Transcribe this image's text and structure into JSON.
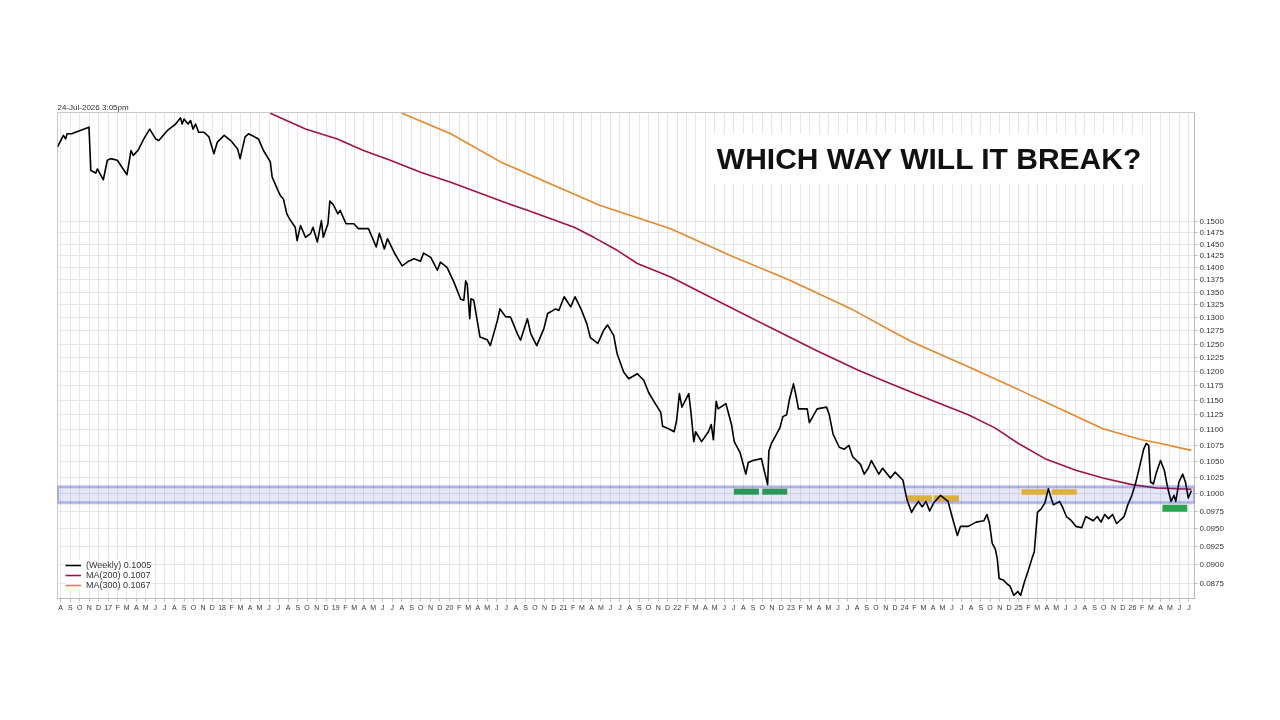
{
  "chart_data": {
    "type": "line",
    "title": "WHICH WAY WILL IT BREAK?",
    "annotations": [
      "24-Jul-2026 3:05pm"
    ],
    "xlim": [
      "2016-07-22",
      "2026-07-19"
    ],
    "ylim": [
      0.0856,
      0.1764
    ],
    "log": true,
    "grid": true,
    "legend": "bottom left",
    "line_style": "solid",
    "xticks": [
      {
        "value": "2016-08",
        "label": "A"
      },
      {
        "value": "2016-09",
        "label": "S"
      },
      {
        "value": "2016-10",
        "label": "O"
      },
      {
        "value": "2016-11",
        "label": "N"
      },
      {
        "value": "2016-12",
        "label": "D"
      },
      {
        "value": "2017-01",
        "label": "17"
      },
      {
        "value": "2017-02",
        "label": "F"
      },
      {
        "value": "2017-03",
        "label": "M"
      },
      {
        "value": "2017-04",
        "label": "A"
      },
      {
        "value": "2017-05",
        "label": "M"
      },
      {
        "value": "2017-06",
        "label": "J"
      },
      {
        "value": "2017-07",
        "label": "J"
      },
      {
        "value": "2017-08",
        "label": "A"
      },
      {
        "value": "2017-09",
        "label": "S"
      },
      {
        "value": "2017-10",
        "label": "O"
      },
      {
        "value": "2017-11",
        "label": "N"
      },
      {
        "value": "2017-12",
        "label": "D"
      },
      {
        "value": "2018-01",
        "label": "18"
      },
      {
        "value": "2018-02",
        "label": "F"
      },
      {
        "value": "2018-03",
        "label": "M"
      },
      {
        "value": "2018-04",
        "label": "A"
      },
      {
        "value": "2018-05",
        "label": "M"
      },
      {
        "value": "2018-06",
        "label": "J"
      },
      {
        "value": "2018-07",
        "label": "J"
      },
      {
        "value": "2018-08",
        "label": "A"
      },
      {
        "value": "2018-09",
        "label": "S"
      },
      {
        "value": "2018-10",
        "label": "O"
      },
      {
        "value": "2018-11",
        "label": "N"
      },
      {
        "value": "2018-12",
        "label": "D"
      },
      {
        "value": "2019-01",
        "label": "19"
      },
      {
        "value": "2019-02",
        "label": "F"
      },
      {
        "value": "2019-03",
        "label": "M"
      },
      {
        "value": "2019-04",
        "label": "A"
      },
      {
        "value": "2019-05",
        "label": "M"
      },
      {
        "value": "2019-06",
        "label": "J"
      },
      {
        "value": "2019-07",
        "label": "J"
      },
      {
        "value": "2019-08",
        "label": "A"
      },
      {
        "value": "2019-09",
        "label": "S"
      },
      {
        "value": "2019-10",
        "label": "O"
      },
      {
        "value": "2019-11",
        "label": "N"
      },
      {
        "value": "2019-12",
        "label": "D"
      },
      {
        "value": "2020-01",
        "label": "20"
      },
      {
        "value": "2020-02",
        "label": "F"
      },
      {
        "value": "2020-03",
        "label": "M"
      },
      {
        "value": "2020-04",
        "label": "A"
      },
      {
        "value": "2020-05",
        "label": "M"
      },
      {
        "value": "2020-06",
        "label": "J"
      },
      {
        "value": "2020-07",
        "label": "J"
      },
      {
        "value": "2020-08",
        "label": "A"
      },
      {
        "value": "2020-09",
        "label": "S"
      },
      {
        "value": "2020-10",
        "label": "O"
      },
      {
        "value": "2020-11",
        "label": "N"
      },
      {
        "value": "2020-12",
        "label": "D"
      },
      {
        "value": "2021-01",
        "label": "21"
      },
      {
        "value": "2021-02",
        "label": "F"
      },
      {
        "value": "2021-03",
        "label": "M"
      },
      {
        "value": "2021-04",
        "label": "A"
      },
      {
        "value": "2021-05",
        "label": "M"
      },
      {
        "value": "2021-06",
        "label": "J"
      },
      {
        "value": "2021-07",
        "label": "J"
      },
      {
        "value": "2021-08",
        "label": "A"
      },
      {
        "value": "2021-09",
        "label": "S"
      },
      {
        "value": "2021-10",
        "label": "O"
      },
      {
        "value": "2021-11",
        "label": "N"
      },
      {
        "value": "2021-12",
        "label": "D"
      },
      {
        "value": "2022-01",
        "label": "22"
      },
      {
        "value": "2022-02",
        "label": "F"
      },
      {
        "value": "2022-03",
        "label": "M"
      },
      {
        "value": "2022-04",
        "label": "A"
      },
      {
        "value": "2022-05",
        "label": "M"
      },
      {
        "value": "2022-06",
        "label": "J"
      },
      {
        "value": "2022-07",
        "label": "J"
      },
      {
        "value": "2022-08",
        "label": "A"
      },
      {
        "value": "2022-09",
        "label": "S"
      },
      {
        "value": "2022-10",
        "label": "O"
      },
      {
        "value": "2022-11",
        "label": "N"
      },
      {
        "value": "2022-12",
        "label": "D"
      },
      {
        "value": "2023-01",
        "label": "23"
      },
      {
        "value": "2023-02",
        "label": "F"
      },
      {
        "value": "2023-03",
        "label": "M"
      },
      {
        "value": "2023-04",
        "label": "A"
      },
      {
        "value": "2023-05",
        "label": "M"
      },
      {
        "value": "2023-06",
        "label": "J"
      },
      {
        "value": "2023-07",
        "label": "J"
      },
      {
        "value": "2023-08",
        "label": "A"
      },
      {
        "value": "2023-09",
        "label": "S"
      },
      {
        "value": "2023-10",
        "label": "O"
      },
      {
        "value": "2023-11",
        "label": "N"
      },
      {
        "value": "2023-12",
        "label": "D"
      },
      {
        "value": "2024-01",
        "label": "24"
      },
      {
        "value": "2024-02",
        "label": "F"
      },
      {
        "value": "2024-03",
        "label": "M"
      },
      {
        "value": "2024-04",
        "label": "A"
      },
      {
        "value": "2024-05",
        "label": "M"
      },
      {
        "value": "2024-06",
        "label": "J"
      },
      {
        "value": "2024-07",
        "label": "J"
      },
      {
        "value": "2024-08",
        "label": "A"
      },
      {
        "value": "2024-09",
        "label": "S"
      },
      {
        "value": "2024-10",
        "label": "O"
      },
      {
        "value": "2024-11",
        "label": "N"
      },
      {
        "value": "2024-12",
        "label": "D"
      },
      {
        "value": "2025-01",
        "label": "25"
      },
      {
        "value": "2025-02",
        "label": "F"
      },
      {
        "value": "2025-03",
        "label": "M"
      },
      {
        "value": "2025-04",
        "label": "A"
      },
      {
        "value": "2025-05",
        "label": "M"
      },
      {
        "value": "2025-06",
        "label": "J"
      },
      {
        "value": "2025-07",
        "label": "J"
      },
      {
        "value": "2025-08",
        "label": "A"
      },
      {
        "value": "2025-09",
        "label": "S"
      },
      {
        "value": "2025-10",
        "label": "O"
      },
      {
        "value": "2025-11",
        "label": "N"
      },
      {
        "value": "2025-12",
        "label": "D"
      },
      {
        "value": "2026-01",
        "label": "26"
      },
      {
        "value": "2026-02",
        "label": "F"
      },
      {
        "value": "2026-03",
        "label": "M"
      },
      {
        "value": "2026-04",
        "label": "A"
      },
      {
        "value": "2026-05",
        "label": "M"
      },
      {
        "value": "2026-06",
        "label": "J"
      },
      {
        "value": "2026-07",
        "label": "J"
      }
    ],
    "yticks": [
      {
        "value": 0.0875,
        "label": "0.0875"
      },
      {
        "value": 0.09,
        "label": "0.0900"
      },
      {
        "value": 0.0925,
        "label": "0.0925"
      },
      {
        "value": 0.095,
        "label": "0.0950"
      },
      {
        "value": 0.0975,
        "label": "0.0975"
      },
      {
        "value": 0.1,
        "label": "0.1000"
      },
      {
        "value": 0.1025,
        "label": "0.1025"
      },
      {
        "value": 0.105,
        "label": "0.1050"
      },
      {
        "value": 0.1075,
        "label": "0.1075"
      },
      {
        "value": 0.11,
        "label": "0.1100"
      },
      {
        "value": 0.1125,
        "label": "0.1125"
      },
      {
        "value": 0.115,
        "label": "0.1150"
      },
      {
        "value": 0.1175,
        "label": "0.1175"
      },
      {
        "value": 0.12,
        "label": "0.1200"
      },
      {
        "value": 0.1225,
        "label": "0.1225"
      },
      {
        "value": 0.125,
        "label": "0.1250"
      },
      {
        "value": 0.1275,
        "label": "0.1275"
      },
      {
        "value": 0.13,
        "label": "0.1300"
      },
      {
        "value": 0.1325,
        "label": "0.1325"
      },
      {
        "value": 0.135,
        "label": "0.1350"
      },
      {
        "value": 0.1375,
        "label": "0.1375"
      },
      {
        "value": 0.14,
        "label": "0.1400"
      },
      {
        "value": 0.1425,
        "label": "0.1425"
      },
      {
        "value": 0.145,
        "label": "0.1450"
      },
      {
        "value": 0.1475,
        "label": "0.1475"
      },
      {
        "value": 0.15,
        "label": "0.1500"
      }
    ],
    "bands": [
      {
        "axis": "y",
        "from": 0.0987,
        "to": 0.1011,
        "color": "#2b30b8"
      }
    ],
    "series": [
      {
        "name": "(Weekly) 0.1005",
        "color": "#000000",
        "x": [
          "2016-07-22",
          "2016-08-10",
          "2016-08-17",
          "2016-08-22",
          "2016-09-05",
          "2016-10-31",
          "2016-11-06",
          "2016-11-22",
          "2016-11-27",
          "2016-12-16",
          "2016-12-29",
          "2017-01-09",
          "2017-01-30",
          "2017-03-02",
          "2017-03-15",
          "2017-03-22",
          "2017-04-06",
          "2017-04-25",
          "2017-05-14",
          "2017-06-02",
          "2017-06-12",
          "2017-07-09",
          "2017-08-05",
          "2017-08-21",
          "2017-08-26",
          "2017-09-01",
          "2017-09-14",
          "2017-09-22",
          "2017-09-30",
          "2017-10-08",
          "2017-10-18",
          "2017-11-04",
          "2017-11-20",
          "2017-12-06",
          "2017-12-17",
          "2018-01-08",
          "2018-01-29",
          "2018-02-20",
          "2018-02-28",
          "2018-03-16",
          "2018-03-27",
          "2018-04-28",
          "2018-05-14",
          "2018-06-05",
          "2018-06-11",
          "2018-06-27",
          "2018-07-07",
          "2018-07-17",
          "2018-07-28",
          "2018-08-09",
          "2018-08-24",
          "2018-08-30",
          "2018-09-10",
          "2018-09-26",
          "2018-10-12",
          "2018-10-20",
          "2018-11-03",
          "2018-11-16",
          "2018-11-22",
          "2018-12-07",
          "2018-12-13",
          "2018-12-24",
          "2019-01-08",
          "2019-01-15",
          "2019-02-03",
          "2019-02-28",
          "2019-03-15",
          "2019-04-16",
          "2019-05-11",
          "2019-05-21",
          "2019-06-06",
          "2019-06-16",
          "2019-07-11",
          "2019-08-02",
          "2019-08-23",
          "2019-09-09",
          "2019-09-30",
          "2019-10-10",
          "2019-11-02",
          "2019-11-23",
          "2019-12-03",
          "2019-12-24",
          "2020-01-15",
          "2020-02-06",
          "2020-02-16",
          "2020-02-22",
          "2020-02-27",
          "2020-03-06",
          "2020-03-10",
          "2020-03-19",
          "2020-04-08",
          "2020-05-01",
          "2020-05-11",
          "2020-06-03",
          "2020-06-11",
          "2020-06-29",
          "2020-07-15",
          "2020-08-06",
          "2020-08-16",
          "2020-09-07",
          "2020-09-18",
          "2020-10-07",
          "2020-10-30",
          "2020-11-11",
          "2020-12-07",
          "2020-12-17",
          "2021-01-03",
          "2021-01-24",
          "2021-02-07",
          "2021-02-26",
          "2021-03-17",
          "2021-03-28",
          "2021-04-21",
          "2021-05-10",
          "2021-05-22",
          "2021-06-11",
          "2021-06-22",
          "2021-07-13",
          "2021-07-29",
          "2021-08-26",
          "2021-09-16",
          "2021-10-01",
          "2021-10-20",
          "2021-11-09",
          "2021-11-15",
          "2021-12-04",
          "2021-12-22",
          "2021-12-30",
          "2022-01-08",
          "2022-01-16",
          "2022-02-07",
          "2022-02-14",
          "2022-02-23",
          "2022-03-01",
          "2022-03-20",
          "2022-04-11",
          "2022-04-20",
          "2022-04-27",
          "2022-05-06",
          "2022-05-12",
          "2022-06-06",
          "2022-06-24",
          "2022-07-03",
          "2022-07-22",
          "2022-08-09",
          "2022-08-17",
          "2022-09-01",
          "2022-09-28",
          "2022-10-18",
          "2022-10-22",
          "2022-10-30",
          "2022-11-26",
          "2022-12-06",
          "2022-12-18",
          "2022-12-27",
          "2023-01-09",
          "2023-01-17",
          "2023-01-25",
          "2023-02-22",
          "2023-03-01",
          "2023-03-26",
          "2023-04-25",
          "2023-05-04",
          "2023-05-16",
          "2023-06-05",
          "2023-06-21",
          "2023-07-06",
          "2023-07-18",
          "2023-08-12",
          "2023-08-24",
          "2023-09-06",
          "2023-09-16",
          "2023-10-10",
          "2023-10-22",
          "2023-11-16",
          "2023-12-01",
          "2023-12-26",
          "2024-01-08",
          "2024-01-23",
          "2024-02-02",
          "2024-02-14",
          "2024-02-26",
          "2024-03-09",
          "2024-03-21",
          "2024-04-03",
          "2024-04-25",
          "2024-05-19",
          "2024-06-01",
          "2024-06-18",
          "2024-06-28",
          "2024-07-23",
          "2024-08-17",
          "2024-09-11",
          "2024-09-21",
          "2024-09-29",
          "2024-10-08",
          "2024-10-18",
          "2024-10-24",
          "2024-10-30",
          "2024-11-12",
          "2024-11-24",
          "2024-12-04",
          "2024-12-16",
          "2024-12-29",
          "2025-01-07",
          "2025-01-19",
          "2025-02-01",
          "2025-02-12",
          "2025-02-20",
          "2025-03-02",
          "2025-03-14",
          "2025-03-26",
          "2025-04-06",
          "2025-04-14",
          "2025-04-22",
          "2025-05-12",
          "2025-05-21",
          "2025-06-03",
          "2025-06-19",
          "2025-07-03",
          "2025-07-22",
          "2025-08-04",
          "2025-08-28",
          "2025-09-10",
          "2025-09-22",
          "2025-10-04",
          "2025-10-16",
          "2025-10-29",
          "2025-11-11",
          "2025-12-05",
          "2025-12-17",
          "2025-12-30",
          "2026-01-12",
          "2026-01-24",
          "2026-02-06",
          "2026-02-14",
          "2026-02-22",
          "2026-02-28",
          "2026-03-09",
          "2026-03-19",
          "2026-04-01",
          "2026-04-13",
          "2026-04-25",
          "2026-05-05",
          "2026-05-14",
          "2026-05-20",
          "2026-05-30",
          "2026-06-11",
          "2026-06-20",
          "2026-06-29",
          "2026-07-09"
        ],
        "values": [
          0.1676,
          0.1705,
          0.1696,
          0.1709,
          0.1709,
          0.1726,
          0.1618,
          0.1612,
          0.1622,
          0.1596,
          0.1643,
          0.1647,
          0.1643,
          0.1608,
          0.1667,
          0.1655,
          0.1667,
          0.1696,
          0.1721,
          0.1696,
          0.1692,
          0.1717,
          0.1734,
          0.175,
          0.1734,
          0.1747,
          0.1734,
          0.1743,
          0.1721,
          0.1734,
          0.1713,
          0.1713,
          0.1701,
          0.1659,
          0.1688,
          0.1705,
          0.1692,
          0.1671,
          0.1647,
          0.1701,
          0.1709,
          0.1696,
          0.1667,
          0.1639,
          0.1602,
          0.1575,
          0.1559,
          0.1551,
          0.1517,
          0.1502,
          0.1487,
          0.1458,
          0.1491,
          0.1465,
          0.1473,
          0.1487,
          0.1455,
          0.1502,
          0.1465,
          0.1495,
          0.1546,
          0.1538,
          0.1517,
          0.1525,
          0.1495,
          0.1495,
          0.1484,
          0.1484,
          0.1444,
          0.1474,
          0.144,
          0.1462,
          0.1428,
          0.1404,
          0.1414,
          0.1419,
          0.1414,
          0.1431,
          0.1422,
          0.1395,
          0.1412,
          0.1401,
          0.1371,
          0.1336,
          0.1334,
          0.1373,
          0.1366,
          0.1298,
          0.1337,
          0.1334,
          0.1263,
          0.1258,
          0.1247,
          0.1295,
          0.1317,
          0.1302,
          0.1301,
          0.1269,
          0.1257,
          0.1298,
          0.1269,
          0.1247,
          0.1279,
          0.1308,
          0.1317,
          0.1314,
          0.1341,
          0.1321,
          0.1341,
          0.1317,
          0.1288,
          0.1262,
          0.1251,
          0.1276,
          0.1286,
          0.1266,
          0.1232,
          0.1199,
          0.1187,
          0.1196,
          0.1184,
          0.1163,
          0.1146,
          0.1129,
          0.1106,
          0.1102,
          0.1097,
          0.1116,
          0.1161,
          0.1138,
          0.1161,
          0.1129,
          0.1081,
          0.1097,
          0.1081,
          0.1097,
          0.1109,
          0.1084,
          0.1148,
          0.1135,
          0.1144,
          0.1109,
          0.1081,
          0.1063,
          0.103,
          0.1048,
          0.1051,
          0.1054,
          0.1014,
          0.1066,
          0.1078,
          0.1103,
          0.1122,
          0.1125,
          0.1151,
          0.1178,
          0.1158,
          0.1135,
          0.1135,
          0.1112,
          0.1135,
          0.1138,
          0.1125,
          0.1093,
          0.1072,
          0.1069,
          0.1075,
          0.1057,
          0.1045,
          0.103,
          0.1039,
          0.1051,
          0.103,
          0.1039,
          0.1024,
          0.1033,
          0.1021,
          0.0992,
          0.0973,
          0.0981,
          0.0989,
          0.0981,
          0.0989,
          0.0975,
          0.0987,
          0.0998,
          0.0989,
          0.0967,
          0.094,
          0.0953,
          0.0953,
          0.0959,
          0.0961,
          0.097,
          0.0957,
          0.0929,
          0.0921,
          0.0908,
          0.0882,
          0.088,
          0.0875,
          0.0872,
          0.086,
          0.0865,
          0.086,
          0.0877,
          0.0893,
          0.0908,
          0.0918,
          0.0973,
          0.0978,
          0.0987,
          0.1008,
          0.0995,
          0.0984,
          0.0989,
          0.0981,
          0.0967,
          0.0961,
          0.0953,
          0.0951,
          0.0967,
          0.0961,
          0.0967,
          0.0959,
          0.097,
          0.0964,
          0.097,
          0.0957,
          0.0967,
          0.0984,
          0.0998,
          0.1018,
          0.1042,
          0.1069,
          0.1078,
          0.1075,
          0.1018,
          0.1015,
          0.1033,
          0.1051,
          0.1036,
          0.1007,
          0.0989,
          0.0998,
          0.0989,
          0.1018,
          0.103,
          0.1018,
          0.0994,
          0.1005
        ]
      },
      {
        "name": "MA(200) 0.1007",
        "color": "#a3143c",
        "x": [
          "2018-06-05",
          "2018-09-26",
          "2019-01-06",
          "2019-03-31",
          "2019-06-25",
          "2019-09-30",
          "2020-01-05",
          "2020-03-29",
          "2020-06-23",
          "2020-09-07",
          "2020-11-21",
          "2021-02-04",
          "2021-04-08",
          "2021-06-22",
          "2021-08-26",
          "2021-12-11",
          "2022-05-19",
          "2022-10-27",
          "2023-03-20",
          "2023-08-05",
          "2023-11-19",
          "2024-03-21",
          "2024-07-23",
          "2024-10-18",
          "2024-12-31",
          "2025-03-26",
          "2025-07-03",
          "2025-09-28",
          "2025-12-30",
          "2026-03-19",
          "2026-07-09"
        ],
        "values": [
          0.1762,
          0.1721,
          0.1696,
          0.1667,
          0.1643,
          0.1614,
          0.159,
          0.1567,
          0.1544,
          0.1525,
          0.1506,
          0.1487,
          0.1465,
          0.1437,
          0.1409,
          0.1381,
          0.133,
          0.1281,
          0.1239,
          0.1202,
          0.1178,
          0.1151,
          0.1125,
          0.1103,
          0.1078,
          0.1054,
          0.1036,
          0.1024,
          0.1014,
          0.1009,
          0.1007
        ]
      },
      {
        "name": "MA(300) 0.1067",
        "color": "#e8862a",
        "x": [
          "2019-08-02",
          "2020-01-05",
          "2020-06-13",
          "2020-11-21",
          "2021-04-29",
          "2021-12-11",
          "2022-06-20",
          "2022-12-30",
          "2023-07-10",
          "2024-01-20",
          "2024-08-17",
          "2024-12-31",
          "2025-05-27",
          "2025-09-28",
          "2026-01-30",
          "2026-04-01",
          "2026-07-09"
        ],
        "values": [
          0.1762,
          0.1709,
          0.1639,
          0.1586,
          0.1536,
          0.1484,
          0.1426,
          0.1374,
          0.1318,
          0.1255,
          0.1202,
          0.1168,
          0.1132,
          0.1102,
          0.1084,
          0.1078,
          0.1067
        ]
      },
      {
        "type": "bar",
        "color": "#2da44e",
        "x": [
          "2022-08-11",
          "2022-11-10",
          "2026-05-17"
        ],
        "base": [
          0.0999,
          0.0999,
          0.0974
        ],
        "values": [
          0.0009,
          0.0009,
          0.001
        ]
      },
      {
        "type": "bar",
        "color": "#f5c22b",
        "x": [
          "2024-02-17",
          "2024-05-14",
          "2025-02-19",
          "2025-05-27"
        ],
        "base": [
          0.0989,
          0.0989,
          0.0999,
          0.0999
        ],
        "values": [
          0.0009,
          0.0009,
          0.0008,
          0.0008
        ]
      }
    ]
  }
}
